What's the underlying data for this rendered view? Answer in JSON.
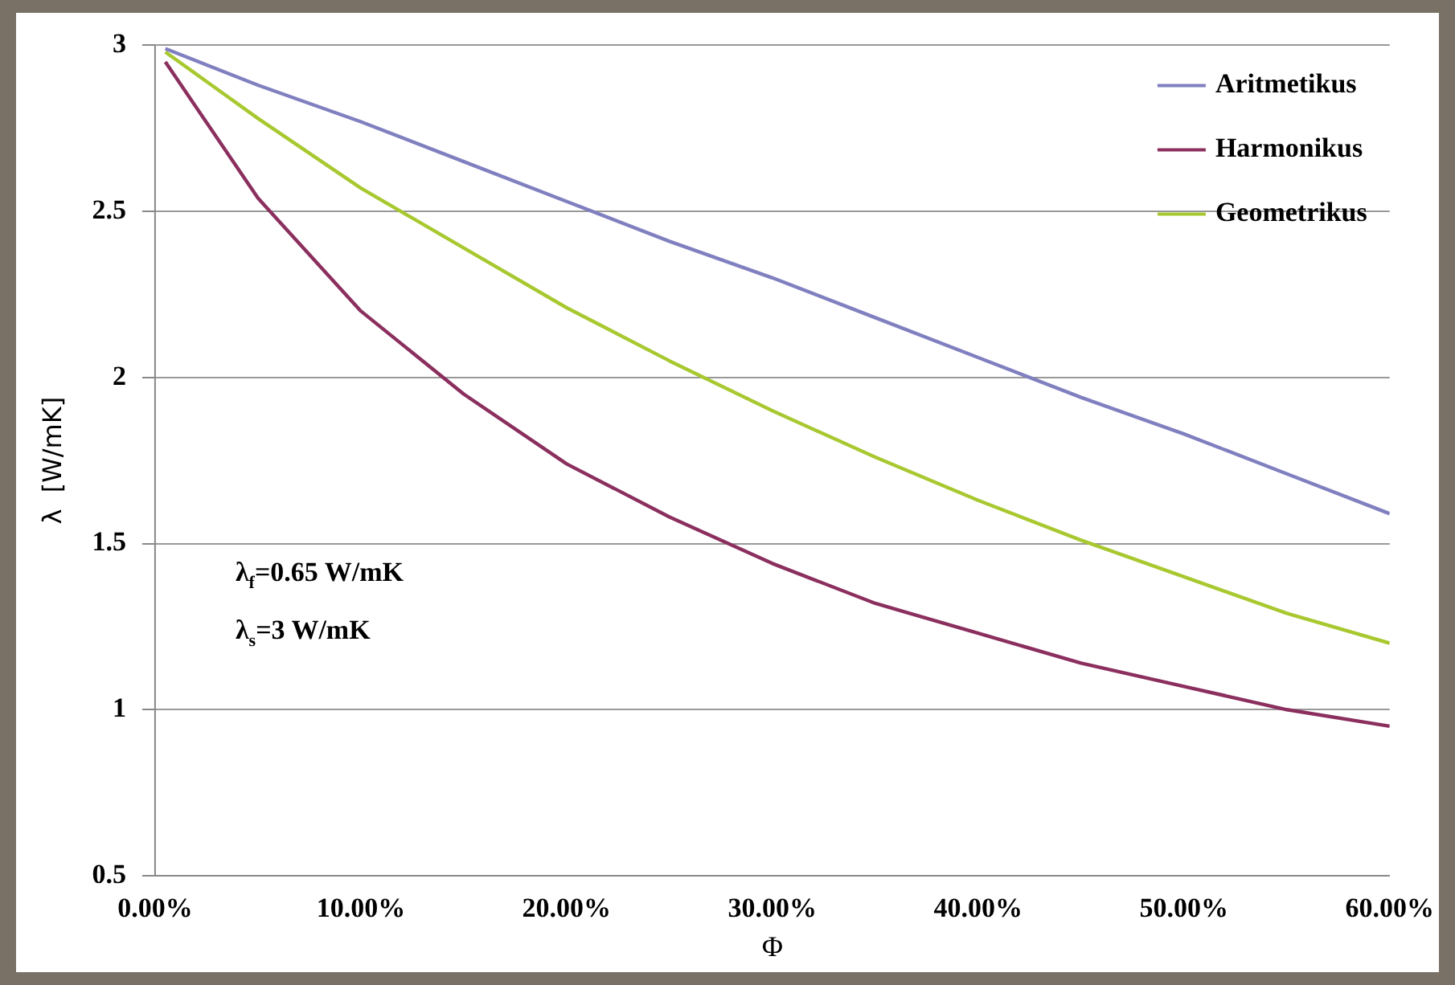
{
  "chart_data": {
    "type": "line",
    "xlabel": "Φ",
    "ylabel": "λ  [W/mK]",
    "x": [
      0.5,
      5,
      10,
      15,
      20,
      25,
      30,
      35,
      40,
      45,
      50,
      55,
      60
    ],
    "series": [
      {
        "name": "Aritmetikus",
        "color": "#8080c0",
        "values": [
          2.99,
          2.88,
          2.77,
          2.65,
          2.53,
          2.41,
          2.3,
          2.18,
          2.06,
          1.94,
          1.83,
          1.71,
          1.59
        ]
      },
      {
        "name": "Harmonikus",
        "color": "#8b2f5e",
        "values": [
          2.95,
          2.54,
          2.2,
          1.95,
          1.74,
          1.58,
          1.44,
          1.32,
          1.23,
          1.14,
          1.07,
          1.0,
          0.95
        ]
      },
      {
        "name": "Geometrikus",
        "color": "#a8c830",
        "values": [
          2.98,
          2.78,
          2.57,
          2.39,
          2.21,
          2.05,
          1.9,
          1.76,
          1.63,
          1.51,
          1.4,
          1.29,
          1.2
        ]
      }
    ],
    "xlim": [
      0,
      60
    ],
    "xticks": [
      {
        "value": 0,
        "label": "0.00%"
      },
      {
        "value": 10,
        "label": "10.00%"
      },
      {
        "value": 20,
        "label": "20.00%"
      },
      {
        "value": 30,
        "label": "30.00%"
      },
      {
        "value": 40,
        "label": "40.00%"
      },
      {
        "value": 50,
        "label": "50.00%"
      },
      {
        "value": 60,
        "label": "60.00%"
      }
    ],
    "ylim": [
      0.5,
      3
    ],
    "yticks": [
      0.5,
      1,
      1.5,
      2,
      2.5,
      3
    ],
    "annotations": [
      "λ$_{f}$=0.65 W/mK",
      "λ$_{s}$=3 W/mK"
    ],
    "grid": "y",
    "legend": "top right",
    "marker": "none",
    "line_style": "solid"
  }
}
